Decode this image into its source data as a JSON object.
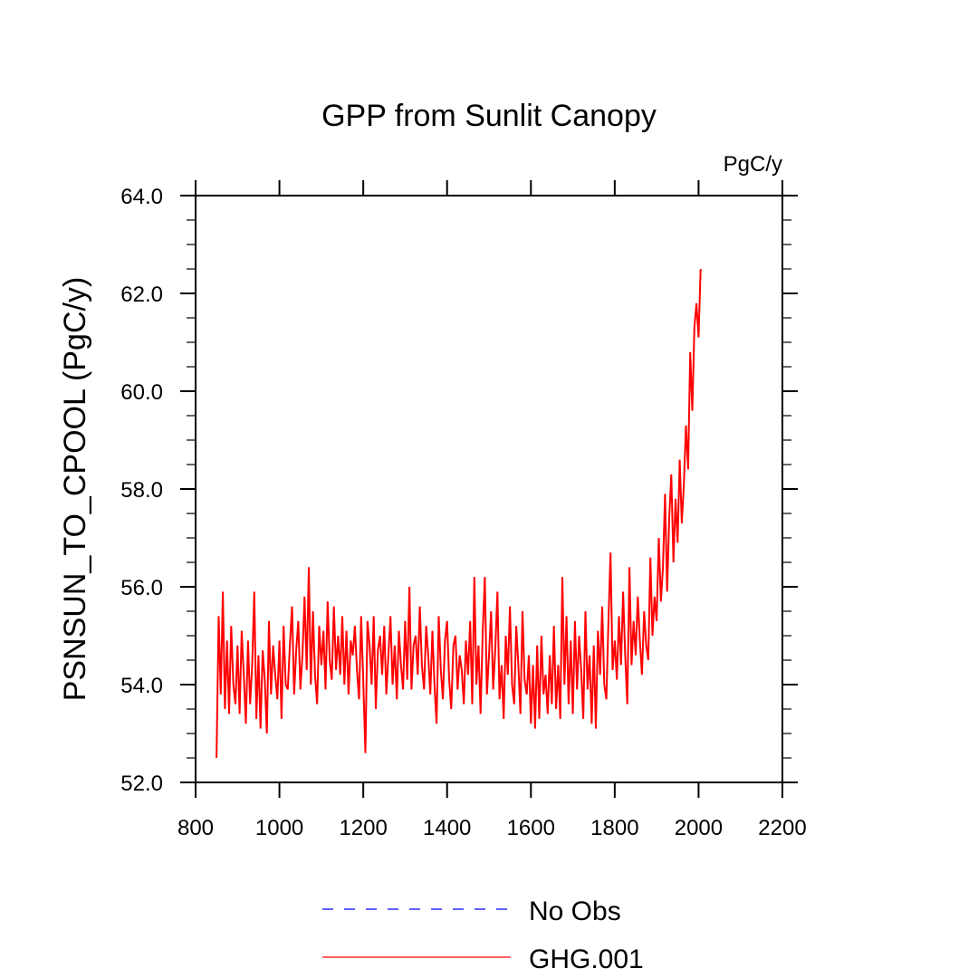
{
  "chart_data": {
    "type": "line",
    "title": "GPP from Sunlit Canopy",
    "units_label": "PgC/y",
    "xlabel": "",
    "ylabel": "PSNSUN_TO_CPOOL  (PgC/y)",
    "xlim": [
      800,
      2200
    ],
    "ylim": [
      52,
      64
    ],
    "x_ticks": [
      "800",
      "1000",
      "1200",
      "1400",
      "1600",
      "1800",
      "2000",
      "2200"
    ],
    "y_ticks": [
      "52.0",
      "54.0",
      "56.0",
      "58.0",
      "60.0",
      "62.0",
      "64.0"
    ],
    "grid": false,
    "legend_position": "bottom",
    "legend": [
      {
        "name": "No Obs",
        "color": "#0000ff",
        "style": "dashed"
      },
      {
        "name": "GHG.001",
        "color": "#ff0000",
        "style": "solid"
      }
    ],
    "series": [
      {
        "name": "No Obs",
        "color": "#0000ff",
        "values": []
      },
      {
        "name": "GHG.001",
        "color": "#ff0000",
        "x_start": 850,
        "x_step": 5,
        "values": [
          52.5,
          55.4,
          53.8,
          55.9,
          53.5,
          54.9,
          53.4,
          55.2,
          54.0,
          53.6,
          54.8,
          53.4,
          55.1,
          54.2,
          53.2,
          54.9,
          53.6,
          54.4,
          55.9,
          53.3,
          54.6,
          53.1,
          54.7,
          54.1,
          53.0,
          55.3,
          53.8,
          54.8,
          54.2,
          53.7,
          54.9,
          53.3,
          55.2,
          54.0,
          53.9,
          54.8,
          55.6,
          53.8,
          54.7,
          55.3,
          53.9,
          54.6,
          55.8,
          54.3,
          56.4,
          54.0,
          55.5,
          54.2,
          53.6,
          55.2,
          54.4,
          55.1,
          53.9,
          55.7,
          54.5,
          54.1,
          55.6,
          54.3,
          55.0,
          54.2,
          55.4,
          54.0,
          55.1,
          53.8,
          54.9,
          54.6,
          55.2,
          54.3,
          53.7,
          55.4,
          54.1,
          52.6,
          55.3,
          54.8,
          54.0,
          55.4,
          53.5,
          54.7,
          55.0,
          54.2,
          55.2,
          53.8,
          54.6,
          55.4,
          54.0,
          54.8,
          53.7,
          55.1,
          54.4,
          53.9,
          55.3,
          54.1,
          56.0,
          53.9,
          54.8,
          55.0,
          54.2,
          55.6,
          54.4,
          53.9,
          55.2,
          54.6,
          53.8,
          55.1,
          54.0,
          53.2,
          55.4,
          54.3,
          53.7,
          54.9,
          55.3,
          54.1,
          53.5,
          54.8,
          55.0,
          53.9,
          54.6,
          54.3,
          53.6,
          54.9,
          54.2,
          55.3,
          53.6,
          56.2,
          54.0,
          54.8,
          53.4,
          55.1,
          56.2,
          53.8,
          54.6,
          55.5,
          53.9,
          54.7,
          55.9,
          53.7,
          54.4,
          53.3,
          55.0,
          54.2,
          55.6,
          54.0,
          53.6,
          55.2,
          54.4,
          53.4,
          55.5,
          54.1,
          53.8,
          54.6,
          53.2,
          54.4,
          53.1,
          54.8,
          53.3,
          55.0,
          53.8,
          54.2,
          53.4,
          54.6,
          53.6,
          55.2,
          53.5,
          54.4,
          53.3,
          56.2,
          54.0,
          55.4,
          53.6,
          54.9,
          53.4,
          55.3,
          53.9,
          55.0,
          54.3,
          53.3,
          55.5,
          53.9,
          54.6,
          53.2,
          54.8,
          53.1,
          55.1,
          54.2,
          55.6,
          54.0,
          53.7,
          55.3,
          56.7,
          54.3,
          54.9,
          54.1,
          55.4,
          54.4,
          55.9,
          54.6,
          53.6,
          56.4,
          54.4,
          55.3,
          54.6,
          55.8,
          54.9,
          54.2,
          55.5,
          54.8,
          54.5,
          56.6,
          55.0,
          55.8,
          55.3,
          57.0,
          55.7,
          56.4,
          57.9,
          55.9,
          57.4,
          58.3,
          56.5,
          57.8,
          56.9,
          58.6,
          57.3,
          58.1,
          59.3,
          58.4,
          60.8,
          59.6,
          61.3,
          61.8,
          61.1,
          62.5
        ]
      }
    ]
  }
}
